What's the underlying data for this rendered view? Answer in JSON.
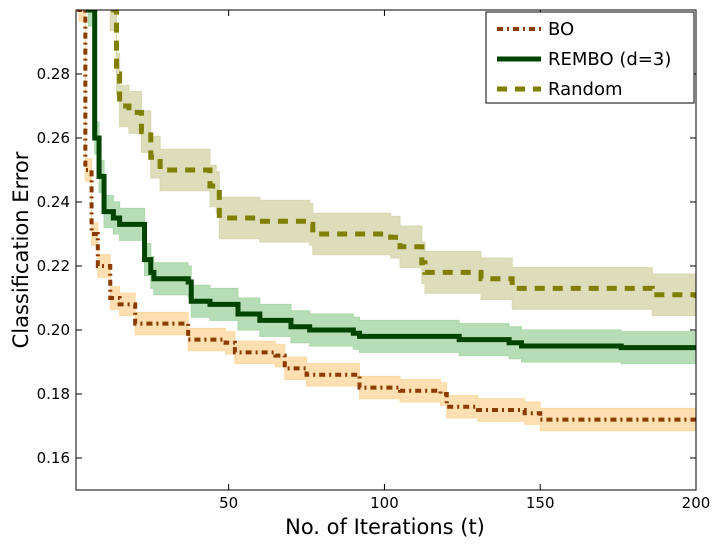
{
  "chart_data": {
    "type": "line",
    "title": "",
    "xlabel": "No. of Iterations (t)",
    "ylabel": "Classification Error",
    "xlim": [
      1,
      200
    ],
    "ylim": [
      0.15,
      0.3
    ],
    "xticks": [
      50,
      100,
      150,
      200
    ],
    "yticks": [
      0.16,
      0.18,
      0.2,
      0.22,
      0.24,
      0.26,
      0.28
    ],
    "ytick_labels": [
      "0.16",
      "0.18",
      "0.20",
      "0.22",
      "0.24",
      "0.26",
      "0.28"
    ],
    "grid": false,
    "legend_position": "top-right",
    "series": [
      {
        "name": "BO",
        "color": "#8b3a00",
        "band_color": "#fdd9a3",
        "style": "dash-dot",
        "error_band": 0.0035,
        "x": [
          1,
          2,
          4,
          6,
          8,
          12,
          15,
          20,
          33,
          37,
          49,
          52,
          65,
          68,
          75,
          87,
          92,
          105,
          118,
          120,
          130,
          145,
          150,
          166,
          200
        ],
        "y": [
          0.31,
          0.3,
          0.25,
          0.23,
          0.22,
          0.21,
          0.208,
          0.202,
          0.202,
          0.197,
          0.196,
          0.193,
          0.192,
          0.188,
          0.186,
          0.186,
          0.182,
          0.181,
          0.18,
          0.176,
          0.175,
          0.174,
          0.172,
          0.172,
          0.171
        ]
      },
      {
        "name": "REMBO (d=3)",
        "color": "#004400",
        "band_color": "#a9d7a9",
        "style": "solid",
        "error_band": 0.005,
        "x": [
          4,
          5,
          7,
          8.4,
          10,
          13,
          15,
          20,
          23,
          25,
          26,
          37,
          38,
          44,
          53,
          60,
          70,
          76,
          90,
          92,
          121,
          124,
          140,
          144,
          173,
          176,
          200
        ],
        "y": [
          0.31,
          0.3,
          0.26,
          0.248,
          0.237,
          0.235,
          0.233,
          0.233,
          0.222,
          0.218,
          0.216,
          0.215,
          0.209,
          0.208,
          0.205,
          0.203,
          0.201,
          0.2,
          0.199,
          0.198,
          0.198,
          0.197,
          0.196,
          0.195,
          0.195,
          0.1945,
          0.194
        ]
      },
      {
        "name": "Random",
        "color": "#7f7f00",
        "band_color": "#d7d7b0",
        "style": "dashed",
        "error_band": 0.0065,
        "x": [
          11,
          12,
          14,
          15,
          18,
          22,
          25,
          28,
          41,
          44,
          46,
          47,
          60,
          76,
          77,
          102,
          105,
          112,
          113,
          128,
          131,
          139,
          141,
          183,
          186,
          200
        ],
        "y": [
          0.31,
          0.3,
          0.28,
          0.27,
          0.268,
          0.262,
          0.254,
          0.25,
          0.25,
          0.245,
          0.243,
          0.235,
          0.234,
          0.233,
          0.23,
          0.229,
          0.226,
          0.221,
          0.218,
          0.218,
          0.216,
          0.216,
          0.213,
          0.213,
          0.211,
          0.21
        ]
      }
    ]
  }
}
